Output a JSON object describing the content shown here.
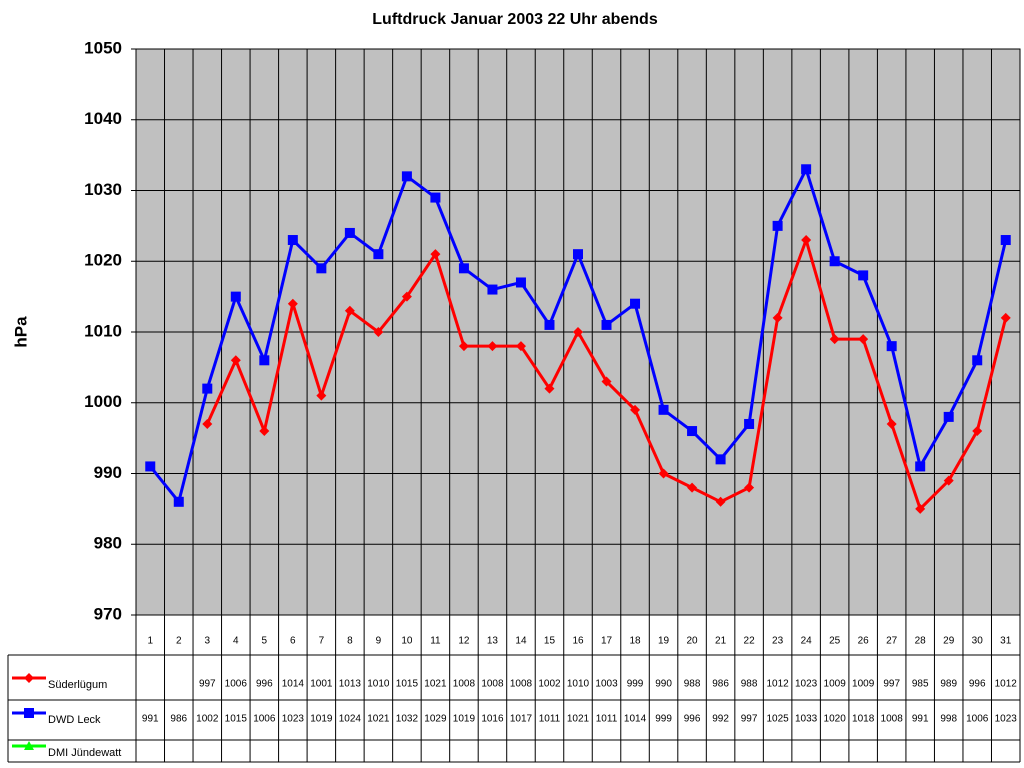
{
  "chart_data": {
    "type": "line",
    "title": "Luftdruck Januar 2003 22 Uhr abends",
    "y_label": "hPa",
    "categories": [
      "1",
      "2",
      "3",
      "4",
      "5",
      "6",
      "7",
      "8",
      "9",
      "10",
      "11",
      "12",
      "13",
      "14",
      "15",
      "16",
      "17",
      "18",
      "19",
      "20",
      "21",
      "22",
      "23",
      "24",
      "25",
      "26",
      "27",
      "28",
      "29",
      "30",
      "31"
    ],
    "series": [
      {
        "name": "Süderlügum",
        "color": "#ff0000",
        "marker": "diamond",
        "values": [
          null,
          null,
          997,
          1006,
          996,
          1014,
          1001,
          1013,
          1010,
          1015,
          1021,
          1008,
          1008,
          1008,
          1002,
          1010,
          1003,
          999,
          990,
          988,
          986,
          988,
          1012,
          1023,
          1009,
          1009,
          997,
          985,
          989,
          996,
          1012
        ]
      },
      {
        "name": "DWD Leck",
        "color": "#0000ff",
        "marker": "square",
        "values": [
          991,
          986,
          1002,
          1015,
          1006,
          1023,
          1019,
          1024,
          1021,
          1032,
          1029,
          1019,
          1016,
          1017,
          1011,
          1021,
          1011,
          1014,
          999,
          996,
          992,
          997,
          1025,
          1033,
          1020,
          1018,
          1008,
          991,
          998,
          1006,
          1023
        ]
      },
      {
        "name": "DMI Jündewatt",
        "color": "#00ff00",
        "marker": "triangle",
        "values": [
          null,
          null,
          null,
          null,
          null,
          null,
          null,
          null,
          null,
          null,
          null,
          null,
          null,
          null,
          null,
          null,
          null,
          null,
          null,
          null,
          null,
          null,
          null,
          null,
          null,
          null,
          null,
          null,
          null,
          null,
          null
        ]
      }
    ],
    "ylim": [
      970,
      1050
    ],
    "yticks": [
      970,
      980,
      990,
      1000,
      1010,
      1020,
      1030,
      1040,
      1050
    ],
    "grid": true,
    "plot_background": "#c0c0c0"
  }
}
